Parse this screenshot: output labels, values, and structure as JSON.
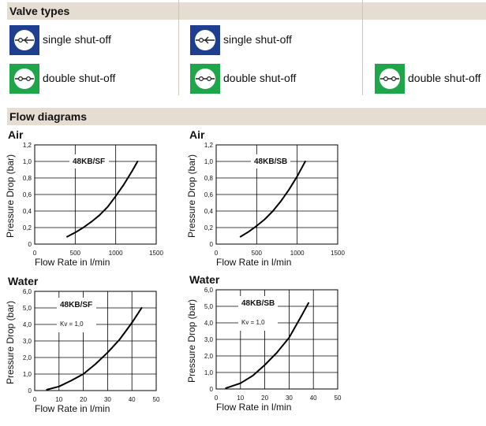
{
  "valve_section": {
    "title": "Valve types",
    "items": [
      {
        "label": "single shut-off",
        "icon": "single-shut-off-icon",
        "color": "#1e3f8f"
      },
      {
        "label": "double shut-off",
        "icon": "double-shut-off-icon",
        "color": "#1fa64a"
      },
      {
        "label": "single shut-off",
        "icon": "single-shut-off-icon",
        "color": "#1e3f8f"
      },
      {
        "label": "double shut-off",
        "icon": "double-shut-off-icon",
        "color": "#1fa64a"
      },
      {
        "label": "double shut-off",
        "icon": "double-shut-off-icon",
        "color": "#1fa64a"
      }
    ]
  },
  "flow_section": {
    "title": "Flow diagrams"
  },
  "chart_data": [
    {
      "type": "line",
      "title": "Air",
      "annotation": "48KB/SF",
      "note": "",
      "xlabel": "Flow Rate in l/min",
      "ylabel": "Pressure Drop (bar)",
      "xlim": [
        0,
        1500
      ],
      "ylim": [
        0,
        1.2
      ],
      "xticks": [
        "0",
        "500",
        "1000",
        "1500"
      ],
      "yticks": [
        "0",
        "0,2",
        "0,4",
        "0,6",
        "0,8",
        "1,0",
        "1,2"
      ],
      "grid": true,
      "x": [
        400,
        500,
        600,
        700,
        800,
        900,
        1000,
        1100,
        1200,
        1270
      ],
      "y": [
        0.09,
        0.14,
        0.2,
        0.27,
        0.35,
        0.45,
        0.58,
        0.72,
        0.88,
        1.0
      ]
    },
    {
      "type": "line",
      "title": "Air",
      "annotation": "48KB/SB",
      "note": "",
      "xlabel": "Flow Rate in l/min",
      "ylabel": "Pressure Drop (bar)",
      "xlim": [
        0,
        1500
      ],
      "ylim": [
        0,
        1.2
      ],
      "xticks": [
        "0",
        "500",
        "1000",
        "1500"
      ],
      "yticks": [
        "0",
        "0,2",
        "0,4",
        "0,6",
        "0,8",
        "1,0",
        "1,2"
      ],
      "grid": true,
      "x": [
        300,
        400,
        500,
        600,
        700,
        800,
        900,
        1000,
        1100
      ],
      "y": [
        0.09,
        0.15,
        0.22,
        0.3,
        0.4,
        0.52,
        0.66,
        0.82,
        1.0
      ]
    },
    {
      "type": "line",
      "title": "Water",
      "annotation": "48KB/SF",
      "note": "Kv = 1,0",
      "xlabel": "Flow Rate in l/min",
      "ylabel": "Pressure Drop (bar)",
      "xlim": [
        0,
        50
      ],
      "ylim": [
        0,
        6.0
      ],
      "xticks": [
        "0",
        "10",
        "20",
        "30",
        "40",
        "50"
      ],
      "yticks": [
        "0",
        "1,0",
        "2,0",
        "3,0",
        "4,0",
        "5,0",
        "6,0"
      ],
      "grid": true,
      "x": [
        5,
        10,
        15,
        20,
        25,
        30,
        35,
        40,
        44
      ],
      "y": [
        0.05,
        0.25,
        0.6,
        1.0,
        1.6,
        2.3,
        3.1,
        4.1,
        5.0
      ]
    },
    {
      "type": "line",
      "title": "Water",
      "annotation": "48KB/SB",
      "note": "Kv = 1,0",
      "xlabel": "Flow Rate in l/min",
      "ylabel": "Pressure Drop (bar)",
      "xlim": [
        0,
        50
      ],
      "ylim": [
        0,
        6.0
      ],
      "xticks": [
        "0",
        "10",
        "20",
        "30",
        "40",
        "50"
      ],
      "yticks": [
        "0",
        "1,0",
        "2,0",
        "3,0",
        "4,0",
        "5,0",
        "6,0"
      ],
      "grid": true,
      "x": [
        4,
        10,
        15,
        20,
        25,
        30,
        35,
        38
      ],
      "y": [
        0.05,
        0.35,
        0.8,
        1.45,
        2.2,
        3.1,
        4.4,
        5.2
      ]
    }
  ]
}
